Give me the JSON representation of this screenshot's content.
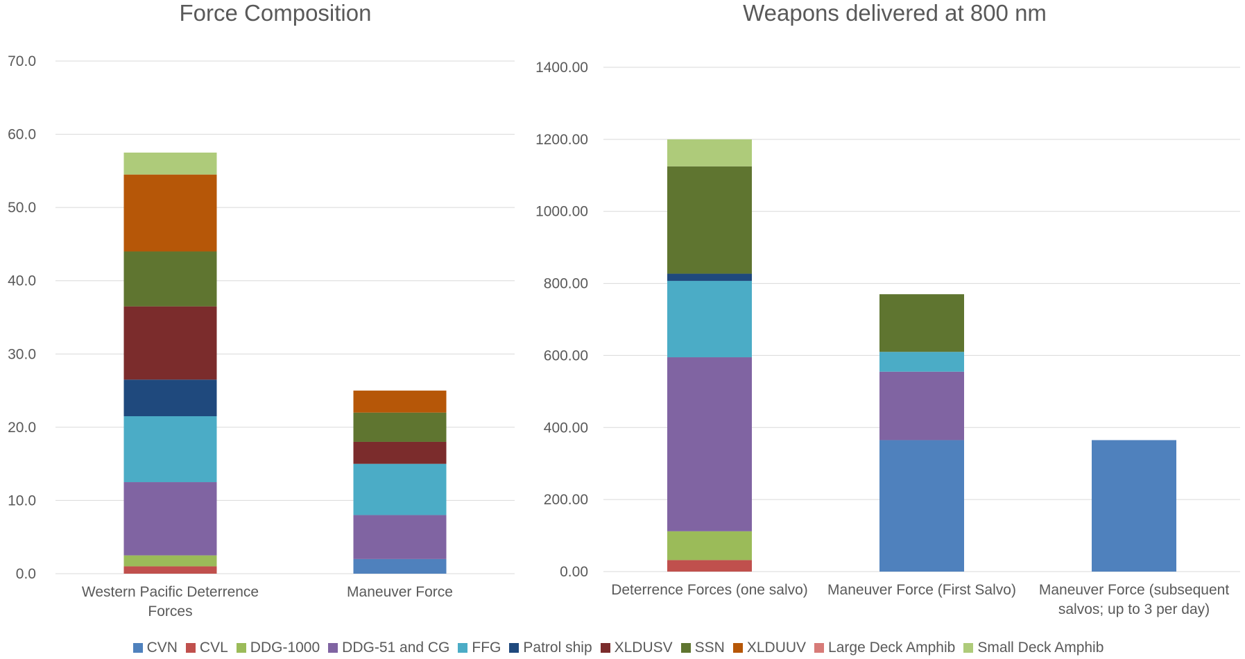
{
  "legend": {
    "items": [
      {
        "label": "CVN",
        "color": "#4f81bd"
      },
      {
        "label": "CVL",
        "color": "#c0504d"
      },
      {
        "label": "DDG-1000",
        "color": "#9bbb59"
      },
      {
        "label": "DDG-51 and CG",
        "color": "#8064a2"
      },
      {
        "label": "FFG",
        "color": "#4bacc6"
      },
      {
        "label": "Patrol ship",
        "color": "#1f497d"
      },
      {
        "label": "XLDUSV",
        "color": "#7b2c2c"
      },
      {
        "label": "SSN",
        "color": "#5f7530"
      },
      {
        "label": "XLDUUV",
        "color": "#b65708"
      },
      {
        "label": "Large Deck Amphib",
        "color": "#d77b78"
      },
      {
        "label": "Small Deck Amphib",
        "color": "#aecb7a"
      }
    ]
  },
  "chart_data": [
    {
      "type": "bar",
      "stacked": true,
      "title": "Force Composition",
      "xlabel": "",
      "ylabel": "",
      "ylim": [
        0,
        70
      ],
      "yticks": [
        "0.0",
        "10.0",
        "20.0",
        "30.0",
        "40.0",
        "50.0",
        "60.0",
        "70.0"
      ],
      "grid": true,
      "legend": "bottom",
      "categories": [
        [
          "Western Pacific Deterrence",
          "Forces"
        ],
        [
          "Maneuver Force"
        ]
      ],
      "series": [
        {
          "name": "CVN",
          "values": [
            0,
            2
          ]
        },
        {
          "name": "CVL",
          "values": [
            1,
            0
          ]
        },
        {
          "name": "DDG-1000",
          "values": [
            1.5,
            0
          ]
        },
        {
          "name": "DDG-51 and CG",
          "values": [
            10,
            6
          ]
        },
        {
          "name": "FFG",
          "values": [
            9,
            7
          ]
        },
        {
          "name": "Patrol ship",
          "values": [
            5,
            0
          ]
        },
        {
          "name": "XLDUSV",
          "values": [
            10,
            3
          ]
        },
        {
          "name": "SSN",
          "values": [
            7.5,
            4
          ]
        },
        {
          "name": "XLDUUV",
          "values": [
            10.5,
            3
          ]
        },
        {
          "name": "Large Deck Amphib",
          "values": [
            0,
            0
          ]
        },
        {
          "name": "Small Deck Amphib",
          "values": [
            3,
            0
          ]
        }
      ]
    },
    {
      "type": "bar",
      "stacked": true,
      "title": "Weapons delivered at 800 nm",
      "xlabel": "",
      "ylabel": "",
      "ylim": [
        0,
        1400
      ],
      "yticks": [
        "0.00",
        "200.00",
        "400.00",
        "600.00",
        "800.00",
        "1000.00",
        "1200.00",
        "1400.00"
      ],
      "grid": true,
      "legend": "bottom",
      "categories": [
        [
          "Deterrence Forces (one salvo)"
        ],
        [
          "Maneuver Force (First Salvo)"
        ],
        [
          "Maneuver Force (subsequent",
          "salvos; up to 3 per day)"
        ]
      ],
      "series": [
        {
          "name": "CVN",
          "values": [
            0,
            365,
            365
          ]
        },
        {
          "name": "CVL",
          "values": [
            32,
            0,
            0
          ]
        },
        {
          "name": "DDG-1000",
          "values": [
            80,
            0,
            0
          ]
        },
        {
          "name": "DDG-51 and CG",
          "values": [
            483,
            190,
            0
          ]
        },
        {
          "name": "FFG",
          "values": [
            212,
            55,
            0
          ]
        },
        {
          "name": "Patrol ship",
          "values": [
            20,
            0,
            0
          ]
        },
        {
          "name": "XLDUSV",
          "values": [
            0,
            0,
            0
          ]
        },
        {
          "name": "SSN",
          "values": [
            298,
            160,
            0
          ]
        },
        {
          "name": "XLDUUV",
          "values": [
            0,
            0,
            0
          ]
        },
        {
          "name": "Large Deck Amphib",
          "values": [
            0,
            0,
            0
          ]
        },
        {
          "name": "Small Deck Amphib",
          "values": [
            75,
            0,
            0
          ]
        }
      ]
    }
  ]
}
